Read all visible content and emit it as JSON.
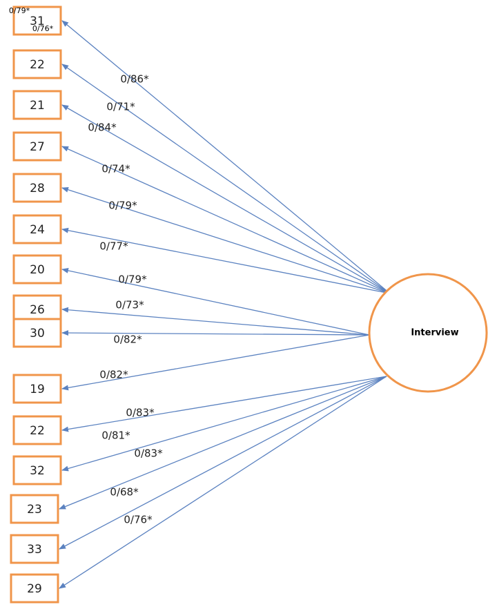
{
  "nodes": [
    "31",
    "22",
    "21",
    "27",
    "28",
    "24",
    "20",
    "26",
    "30",
    "19",
    "22",
    "32",
    "23",
    "33",
    "29"
  ],
  "edges": [
    "0/86*",
    "0/71*",
    "0/84*",
    "0/74*",
    "0/79*",
    "0/77*",
    "0/79*",
    "0/73*",
    "0/82*",
    "0/82*",
    "0/83*",
    "0/81*",
    "0/83*",
    "0/68*",
    "0/76*"
  ],
  "extra_labels": [
    "0/79*",
    "0/76*"
  ],
  "latent": "Interview"
}
